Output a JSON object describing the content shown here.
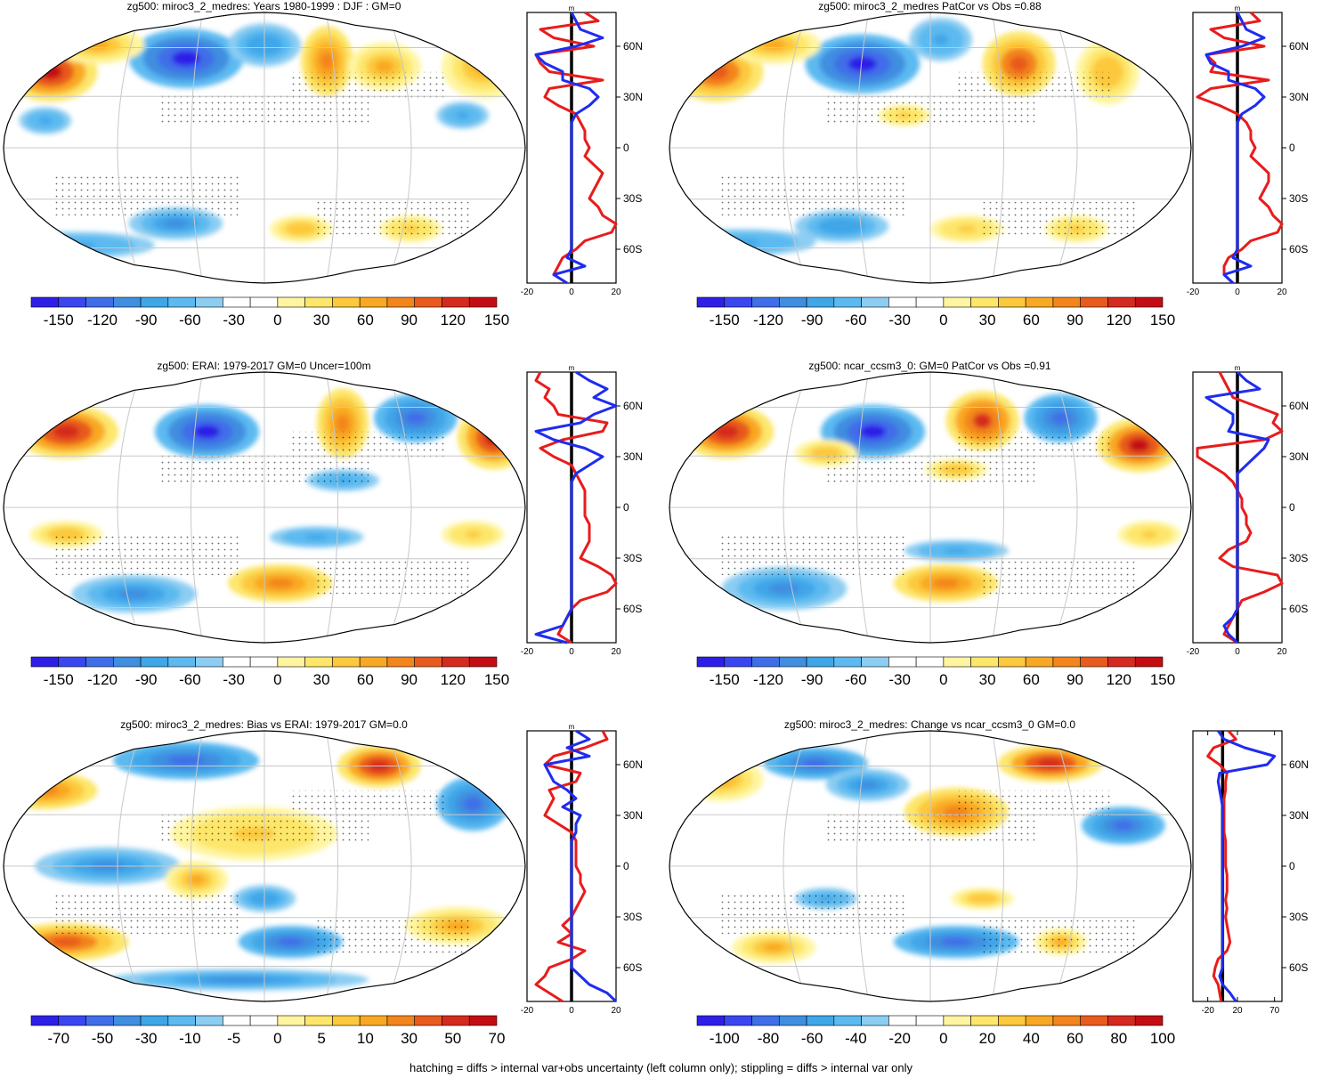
{
  "footer": "hatching = diffs > internal var+obs uncertainty (left column only); stippling = diffs > internal var only",
  "colors": {
    "blue_scale": [
      "#2d1fe8",
      "#3a46f0",
      "#3f6ee8",
      "#3f8ee0",
      "#3fa6e8",
      "#5cbaf0",
      "#8ccdf2",
      "#ffffff"
    ],
    "red_scale": [
      "#ffffff",
      "#fff5a0",
      "#fde66a",
      "#fcc93d",
      "#f9a824",
      "#f3851c",
      "#e85a1e",
      "#d52a1f",
      "#c40d12"
    ],
    "zonal_red": "#e81c1c",
    "zonal_blue": "#1f2cf0",
    "grid": "#c8c8c8"
  },
  "panels": [
    {
      "id": "p1",
      "title": "zg500: miroc3_2_medres: Years 1980-1999 : DJF : GM=0",
      "colorbar_labels": [
        "-150",
        "-120",
        "-90",
        "-60",
        "-30",
        "0",
        "30",
        "60",
        "90",
        "120",
        "150"
      ],
      "chart_data": {
        "type": "heatmap",
        "projection": "Robinson",
        "lat_labels": [
          "60N",
          "30N",
          "0",
          "30S",
          "60S"
        ],
        "zonal_xticks": [
          "-20",
          "0",
          "20"
        ],
        "zonal_unit": "m",
        "zonal_xlim": [
          -20,
          20
        ],
        "zonal_lat": [
          80,
          75,
          70,
          65,
          60,
          55,
          50,
          45,
          40,
          35,
          30,
          25,
          20,
          15,
          10,
          5,
          0,
          -5,
          -10,
          -15,
          -20,
          -25,
          -30,
          -35,
          -40,
          -45,
          -50,
          -55,
          -60,
          -65,
          -70,
          -75,
          -80
        ],
        "zonal_red": [
          6,
          12,
          -14,
          -8,
          10,
          -16,
          -14,
          -10,
          14,
          -10,
          -12,
          -6,
          2,
          4,
          6,
          6,
          8,
          6,
          10,
          14,
          12,
          10,
          8,
          12,
          14,
          22,
          18,
          6,
          2,
          -4,
          -6,
          -8,
          -2
        ],
        "zonal_blue": [
          0,
          2,
          4,
          14,
          2,
          -16,
          -12,
          -4,
          -4,
          8,
          12,
          8,
          2,
          0,
          0,
          0,
          0,
          0,
          0,
          0,
          0,
          0,
          0,
          0,
          0,
          0,
          0,
          0,
          0,
          -2,
          6,
          -8,
          -2
        ]
      }
    },
    {
      "id": "p2",
      "title": "zg500: miroc3_2_medres PatCor vs Obs =0.88",
      "colorbar_labels": [
        "-150",
        "-120",
        "-90",
        "-60",
        "-30",
        "0",
        "30",
        "60",
        "90",
        "120",
        "150"
      ],
      "chart_data": {
        "type": "heatmap",
        "projection": "Robinson",
        "lat_labels": [
          "60N",
          "30N",
          "0",
          "30S",
          "60S"
        ],
        "zonal_xticks": [
          "-20",
          "0",
          "20"
        ],
        "zonal_unit": "m",
        "zonal_xlim": [
          -20,
          20
        ],
        "zonal_lat": [
          80,
          75,
          70,
          65,
          60,
          55,
          50,
          45,
          40,
          35,
          30,
          25,
          20,
          15,
          10,
          5,
          0,
          -5,
          -10,
          -15,
          -20,
          -25,
          -30,
          -35,
          -40,
          -45,
          -50,
          -55,
          -60,
          -65,
          -70,
          -75,
          -80
        ],
        "zonal_red": [
          6,
          10,
          -12,
          -6,
          12,
          -14,
          -10,
          -12,
          14,
          -12,
          -18,
          -8,
          0,
          4,
          6,
          6,
          8,
          6,
          10,
          14,
          14,
          12,
          10,
          14,
          16,
          22,
          18,
          6,
          2,
          -4,
          -6,
          -6,
          -2
        ],
        "zonal_blue": [
          0,
          2,
          4,
          12,
          2,
          -14,
          -12,
          -4,
          -4,
          8,
          12,
          8,
          2,
          0,
          0,
          0,
          0,
          0,
          0,
          0,
          0,
          0,
          0,
          0,
          0,
          0,
          0,
          0,
          0,
          -2,
          6,
          -6,
          -2
        ]
      }
    },
    {
      "id": "p3",
      "title": "zg500: ERAI: 1979-2017 GM=0 Uncer=100m",
      "colorbar_labels": [
        "-150",
        "-120",
        "-90",
        "-60",
        "-30",
        "0",
        "30",
        "60",
        "90",
        "120",
        "150"
      ],
      "chart_data": {
        "type": "heatmap",
        "projection": "Robinson",
        "lat_labels": [
          "60N",
          "30N",
          "0",
          "30S",
          "60S"
        ],
        "zonal_xticks": [
          "-20",
          "0",
          "20"
        ],
        "zonal_unit": "m",
        "zonal_xlim": [
          -20,
          20
        ],
        "zonal_lat": [
          80,
          75,
          70,
          65,
          60,
          55,
          50,
          45,
          40,
          35,
          30,
          25,
          20,
          15,
          10,
          5,
          0,
          -5,
          -10,
          -15,
          -20,
          -25,
          -30,
          -35,
          -40,
          -45,
          -50,
          -55,
          -60,
          -65,
          -70,
          -75,
          -80
        ],
        "zonal_red": [
          -14,
          -16,
          -10,
          -12,
          -8,
          -6,
          16,
          14,
          -4,
          -14,
          -8,
          0,
          2,
          4,
          6,
          6,
          6,
          6,
          8,
          8,
          8,
          6,
          4,
          12,
          18,
          20,
          16,
          4,
          0,
          -2,
          -4,
          -6,
          0
        ],
        "zonal_blue": [
          2,
          8,
          16,
          10,
          20,
          10,
          4,
          -16,
          -8,
          6,
          14,
          8,
          2,
          0,
          0,
          0,
          0,
          0,
          0,
          0,
          0,
          0,
          0,
          0,
          0,
          0,
          0,
          0,
          0,
          -2,
          -4,
          -16,
          -2
        ]
      }
    },
    {
      "id": "p4",
      "title": "zg500: ncar_ccsm3_0: GM=0 PatCor vs Obs =0.91",
      "colorbar_labels": [
        "-150",
        "-120",
        "-90",
        "-60",
        "-30",
        "0",
        "30",
        "60",
        "90",
        "120",
        "150"
      ],
      "chart_data": {
        "type": "heatmap",
        "projection": "Robinson",
        "lat_labels": [
          "60N",
          "30N",
          "0",
          "30S",
          "60S"
        ],
        "zonal_xticks": [
          "-20",
          "0",
          "20"
        ],
        "zonal_unit": "m",
        "zonal_xlim": [
          -20,
          20
        ],
        "zonal_lat": [
          80,
          75,
          70,
          65,
          60,
          55,
          50,
          45,
          40,
          35,
          30,
          25,
          20,
          15,
          10,
          5,
          0,
          -5,
          -10,
          -15,
          -20,
          -25,
          -30,
          -35,
          -40,
          -45,
          -50,
          -55,
          -60,
          -65,
          -70,
          -75,
          -80
        ],
        "zonal_red": [
          -8,
          -6,
          -4,
          -2,
          8,
          18,
          16,
          20,
          12,
          -18,
          -18,
          -12,
          -6,
          -2,
          0,
          2,
          2,
          4,
          4,
          6,
          4,
          -4,
          -8,
          -2,
          18,
          22,
          12,
          2,
          0,
          -2,
          -4,
          -6,
          0
        ],
        "zonal_blue": [
          0,
          4,
          10,
          -14,
          -8,
          -2,
          -2,
          -4,
          14,
          12,
          8,
          4,
          0,
          0,
          0,
          0,
          0,
          0,
          0,
          0,
          0,
          0,
          0,
          0,
          0,
          0,
          0,
          0,
          0,
          -2,
          -6,
          -4,
          0
        ]
      }
    },
    {
      "id": "p5",
      "title": "zg500: miroc3_2_medres: Bias vs ERAI: 1979-2017 GM=0.0",
      "colorbar_labels": [
        "-70",
        "-50",
        "-30",
        "-10",
        "-5",
        "0",
        "5",
        "10",
        "30",
        "50",
        "70"
      ],
      "chart_data": {
        "type": "heatmap",
        "projection": "Robinson",
        "lat_labels": [
          "60N",
          "30N",
          "0",
          "30S",
          "60S"
        ],
        "zonal_xticks": [
          "-20",
          "0",
          "20"
        ],
        "zonal_unit": "m",
        "zonal_xlim": [
          -20,
          20
        ],
        "zonal_lat": [
          80,
          75,
          70,
          65,
          60,
          55,
          50,
          45,
          40,
          35,
          30,
          25,
          20,
          15,
          10,
          5,
          0,
          -5,
          -10,
          -15,
          -20,
          -25,
          -30,
          -35,
          -40,
          -45,
          -50,
          -55,
          -60,
          -65,
          -70,
          -75,
          -80
        ],
        "zonal_red": [
          14,
          16,
          6,
          -8,
          -12,
          4,
          2,
          -10,
          -8,
          -10,
          -12,
          -6,
          0,
          2,
          2,
          2,
          2,
          4,
          4,
          6,
          4,
          2,
          0,
          -4,
          0,
          -6,
          6,
          0,
          -10,
          -12,
          -16,
          -10,
          -4
        ],
        "zonal_blue": [
          2,
          8,
          -2,
          8,
          -12,
          -10,
          -8,
          -2,
          2,
          -4,
          4,
          2,
          2,
          0,
          0,
          0,
          0,
          0,
          0,
          0,
          0,
          0,
          0,
          0,
          0,
          0,
          0,
          0,
          0,
          4,
          8,
          16,
          20
        ]
      }
    },
    {
      "id": "p6",
      "title": "zg500: miroc3_2_medres: Change vs ncar_ccsm3_0 GM=0.0",
      "colorbar_labels": [
        "-100",
        "-80",
        "-60",
        "-40",
        "-20",
        "0",
        "20",
        "40",
        "60",
        "80",
        "100"
      ],
      "chart_data": {
        "type": "heatmap",
        "projection": "Robinson",
        "lat_labels": [
          "60N",
          "30N",
          "0",
          "30S",
          "60S"
        ],
        "zonal_xticks": [
          "-20",
          "20",
          "70"
        ],
        "zonal_unit": "",
        "zonal_xlim": [
          -40,
          80
        ],
        "zonal_lat": [
          80,
          75,
          70,
          65,
          60,
          55,
          50,
          45,
          40,
          35,
          30,
          25,
          20,
          15,
          10,
          5,
          0,
          -5,
          -10,
          -15,
          -20,
          -25,
          -30,
          -35,
          -40,
          -45,
          -50,
          -55,
          -60,
          -65,
          -70,
          -75,
          -80
        ],
        "zonal_red": [
          8,
          18,
          -12,
          -20,
          -4,
          6,
          4,
          4,
          2,
          2,
          2,
          2,
          2,
          4,
          4,
          4,
          4,
          6,
          6,
          6,
          4,
          6,
          4,
          6,
          8,
          10,
          6,
          -6,
          -10,
          -12,
          -6,
          -4,
          -2
        ],
        "zonal_blue": [
          -6,
          2,
          30,
          70,
          60,
          -4,
          -6,
          -4,
          -2,
          0,
          0,
          0,
          0,
          0,
          0,
          0,
          0,
          0,
          0,
          0,
          0,
          0,
          0,
          0,
          0,
          0,
          0,
          0,
          0,
          -4,
          0,
          10,
          18
        ]
      }
    }
  ]
}
